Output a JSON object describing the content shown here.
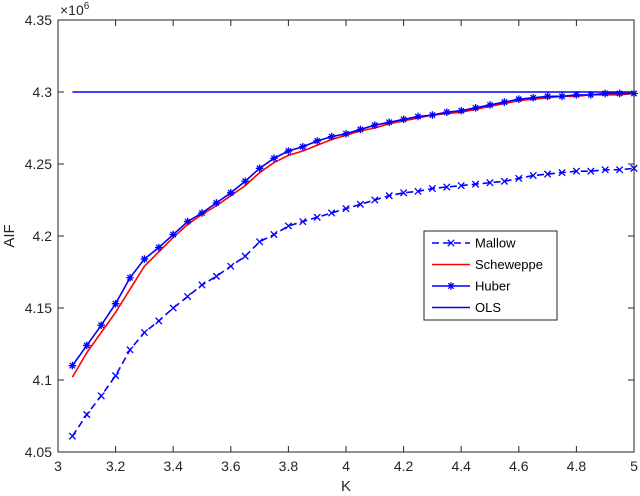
{
  "chart_data": {
    "type": "line",
    "xlabel": "K",
    "ylabel": "AIF",
    "y_multiplier": "×10",
    "y_exponent": "6",
    "xlim": [
      3,
      5
    ],
    "ylim": [
      4.05,
      4.35
    ],
    "x_ticks": [
      3,
      3.2,
      3.4,
      3.6,
      3.8,
      4,
      4.2,
      4.4,
      4.6,
      4.8,
      5
    ],
    "x_tick_labels": [
      "3",
      "3.2",
      "3.4",
      "3.6",
      "3.8",
      "4",
      "4.2",
      "4.4",
      "4.6",
      "4.8",
      "5"
    ],
    "y_ticks": [
      4.05,
      4.1,
      4.15,
      4.2,
      4.25,
      4.3,
      4.35
    ],
    "y_tick_labels": [
      "4.05",
      "4.1",
      "4.15",
      "4.2",
      "4.25",
      "4.3",
      "4.35"
    ],
    "grid": false,
    "legend_position": "center-right",
    "x": [
      3.05,
      3.1,
      3.15,
      3.2,
      3.25,
      3.3,
      3.35,
      3.4,
      3.45,
      3.5,
      3.55,
      3.6,
      3.65,
      3.7,
      3.75,
      3.8,
      3.85,
      3.9,
      3.95,
      4.0,
      4.05,
      4.1,
      4.15,
      4.2,
      4.25,
      4.3,
      4.35,
      4.4,
      4.45,
      4.5,
      4.55,
      4.6,
      4.65,
      4.7,
      4.75,
      4.8,
      4.85,
      4.9,
      4.95,
      5.0
    ],
    "series": [
      {
        "name": "Mallow",
        "color": "#0000ff",
        "line_style": "dashed",
        "marker": "x",
        "values": [
          4.061,
          4.076,
          4.089,
          4.103,
          4.121,
          4.133,
          4.141,
          4.15,
          4.158,
          4.166,
          4.172,
          4.179,
          4.186,
          4.196,
          4.201,
          4.207,
          4.21,
          4.213,
          4.216,
          4.219,
          4.222,
          4.225,
          4.228,
          4.23,
          4.231,
          4.233,
          4.234,
          4.235,
          4.236,
          4.237,
          4.238,
          4.24,
          4.242,
          4.243,
          4.244,
          4.245,
          4.245,
          4.246,
          4.246,
          4.247
        ]
      },
      {
        "name": "Scheweppe",
        "color": "#ff0000",
        "line_style": "solid",
        "marker": "none",
        "values": [
          4.102,
          4.119,
          4.133,
          4.147,
          4.163,
          4.179,
          4.189,
          4.199,
          4.208,
          4.215,
          4.221,
          4.228,
          4.235,
          4.244,
          4.251,
          4.256,
          4.259,
          4.263,
          4.267,
          4.27,
          4.273,
          4.275,
          4.278,
          4.28,
          4.282,
          4.284,
          4.285,
          4.286,
          4.288,
          4.29,
          4.292,
          4.294,
          4.295,
          4.296,
          4.297,
          4.297,
          4.298,
          4.298,
          4.298,
          4.299
        ]
      },
      {
        "name": "Huber",
        "color": "#0000ff",
        "line_style": "solid",
        "marker": "star",
        "values": [
          4.11,
          4.124,
          4.138,
          4.153,
          4.171,
          4.184,
          4.192,
          4.201,
          4.21,
          4.216,
          4.223,
          4.23,
          4.238,
          4.247,
          4.254,
          4.259,
          4.262,
          4.266,
          4.269,
          4.271,
          4.274,
          4.277,
          4.279,
          4.281,
          4.283,
          4.284,
          4.286,
          4.287,
          4.289,
          4.291,
          4.293,
          4.295,
          4.296,
          4.297,
          4.297,
          4.298,
          4.298,
          4.299,
          4.299,
          4.299
        ]
      },
      {
        "name": "OLS",
        "color": "#0000ff",
        "line_style": "solid",
        "marker": "none",
        "values": [
          4.3,
          4.3,
          4.3,
          4.3,
          4.3,
          4.3,
          4.3,
          4.3,
          4.3,
          4.3,
          4.3,
          4.3,
          4.3,
          4.3,
          4.3,
          4.3,
          4.3,
          4.3,
          4.3,
          4.3,
          4.3,
          4.3,
          4.3,
          4.3,
          4.3,
          4.3,
          4.3,
          4.3,
          4.3,
          4.3,
          4.3,
          4.3,
          4.3,
          4.3,
          4.3,
          4.3,
          4.3,
          4.3,
          4.3,
          4.3
        ]
      }
    ]
  }
}
